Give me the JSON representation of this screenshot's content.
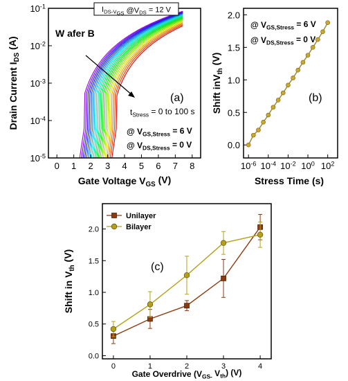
{
  "colors": {
    "unilayer": "#8b3a0f",
    "bilayer": "#b5a01a",
    "panel_b_line": "#a08a3a",
    "panel_b_marker": "#c8a830",
    "wafer_label": "#c8a020"
  },
  "chart_data": [
    {
      "panel": "(a)",
      "type": "line",
      "header": "I_DS-V_GS @V_DS = 12 V",
      "xlabel": "Gate Voltage V_GS (V)",
      "ylabel": "Drain Current I_DS (A)",
      "x_ticks": [
        "0",
        "1",
        "2",
        "3",
        "4",
        "5",
        "6",
        "7",
        "8"
      ],
      "y_ticks": [
        "10^-5",
        "10^-4",
        "10^-3",
        "10^-2",
        "10^-1"
      ],
      "xlim": [
        -0.5,
        8.5
      ],
      "ylim": [
        1e-05,
        0.1
      ],
      "yscale": "log",
      "series_label": "W afer B",
      "arrow_label": "t_Stress = 0 to 100 s",
      "annotation_lines": [
        "@ V_GS,Stress = 6 V",
        "@ V_DS,Stress = 0 V"
      ],
      "curves": {
        "count": 20,
        "threshold_start": 1.6,
        "threshold_end": 3.5,
        "end_current": [
          0.035,
          0.085
        ],
        "x_end": 7.5
      }
    },
    {
      "panel": "(b)",
      "type": "scatter",
      "xlabel": "Stress Time (s)",
      "ylabel": "Shift inV_th (V)",
      "x_ticks": [
        "10^-6",
        "10^-4",
        "10^-2",
        "10^0",
        "10^2"
      ],
      "y_ticks": [
        "0.0",
        "0.5",
        "1.0",
        "1.5",
        "2.0"
      ],
      "xscale": "log",
      "xlim_exp": [
        -6.5,
        3
      ],
      "ylim": [
        -0.2,
        2.1
      ],
      "annotation_lines": [
        "@ V_GS,Stress = 6 V",
        "@ V_DS,Stress = 0 V"
      ],
      "x_exp": [
        -6,
        -5.5,
        -5,
        -4.5,
        -4,
        -3.5,
        -3,
        -2.5,
        -2,
        -1.5,
        -1,
        -0.5,
        0,
        0.5,
        1,
        1.5,
        2
      ],
      "y": [
        0.0,
        0.15,
        0.23,
        0.35,
        0.46,
        0.58,
        0.69,
        0.8,
        0.92,
        1.03,
        1.15,
        1.27,
        1.38,
        1.5,
        1.62,
        1.74,
        1.88
      ]
    },
    {
      "panel": "(c)",
      "type": "line",
      "xlabel": "Gate Overdrive (V_GS- V_th) (V)",
      "ylabel": "Shift in V_th (V)",
      "categories": [
        0,
        1,
        2,
        3,
        4
      ],
      "x_ticks": [
        "0",
        "1",
        "2",
        "3",
        "4"
      ],
      "y_ticks": [
        "0.0",
        "0.5",
        "1.0",
        "1.5",
        "2.0"
      ],
      "xlim": [
        -0.3,
        4.3
      ],
      "ylim": [
        -0.05,
        2.4
      ],
      "series": [
        {
          "name": "Unilayer",
          "values": [
            0.31,
            0.58,
            0.79,
            1.22,
            2.03
          ],
          "errors": [
            0.12,
            0.15,
            0.08,
            0.3,
            0.2
          ]
        },
        {
          "name": "Bilayer",
          "values": [
            0.42,
            0.81,
            1.27,
            1.78,
            1.91
          ],
          "errors": [
            0.12,
            0.2,
            0.3,
            0.18,
            0.2
          ]
        }
      ],
      "legend": "top-left"
    }
  ]
}
